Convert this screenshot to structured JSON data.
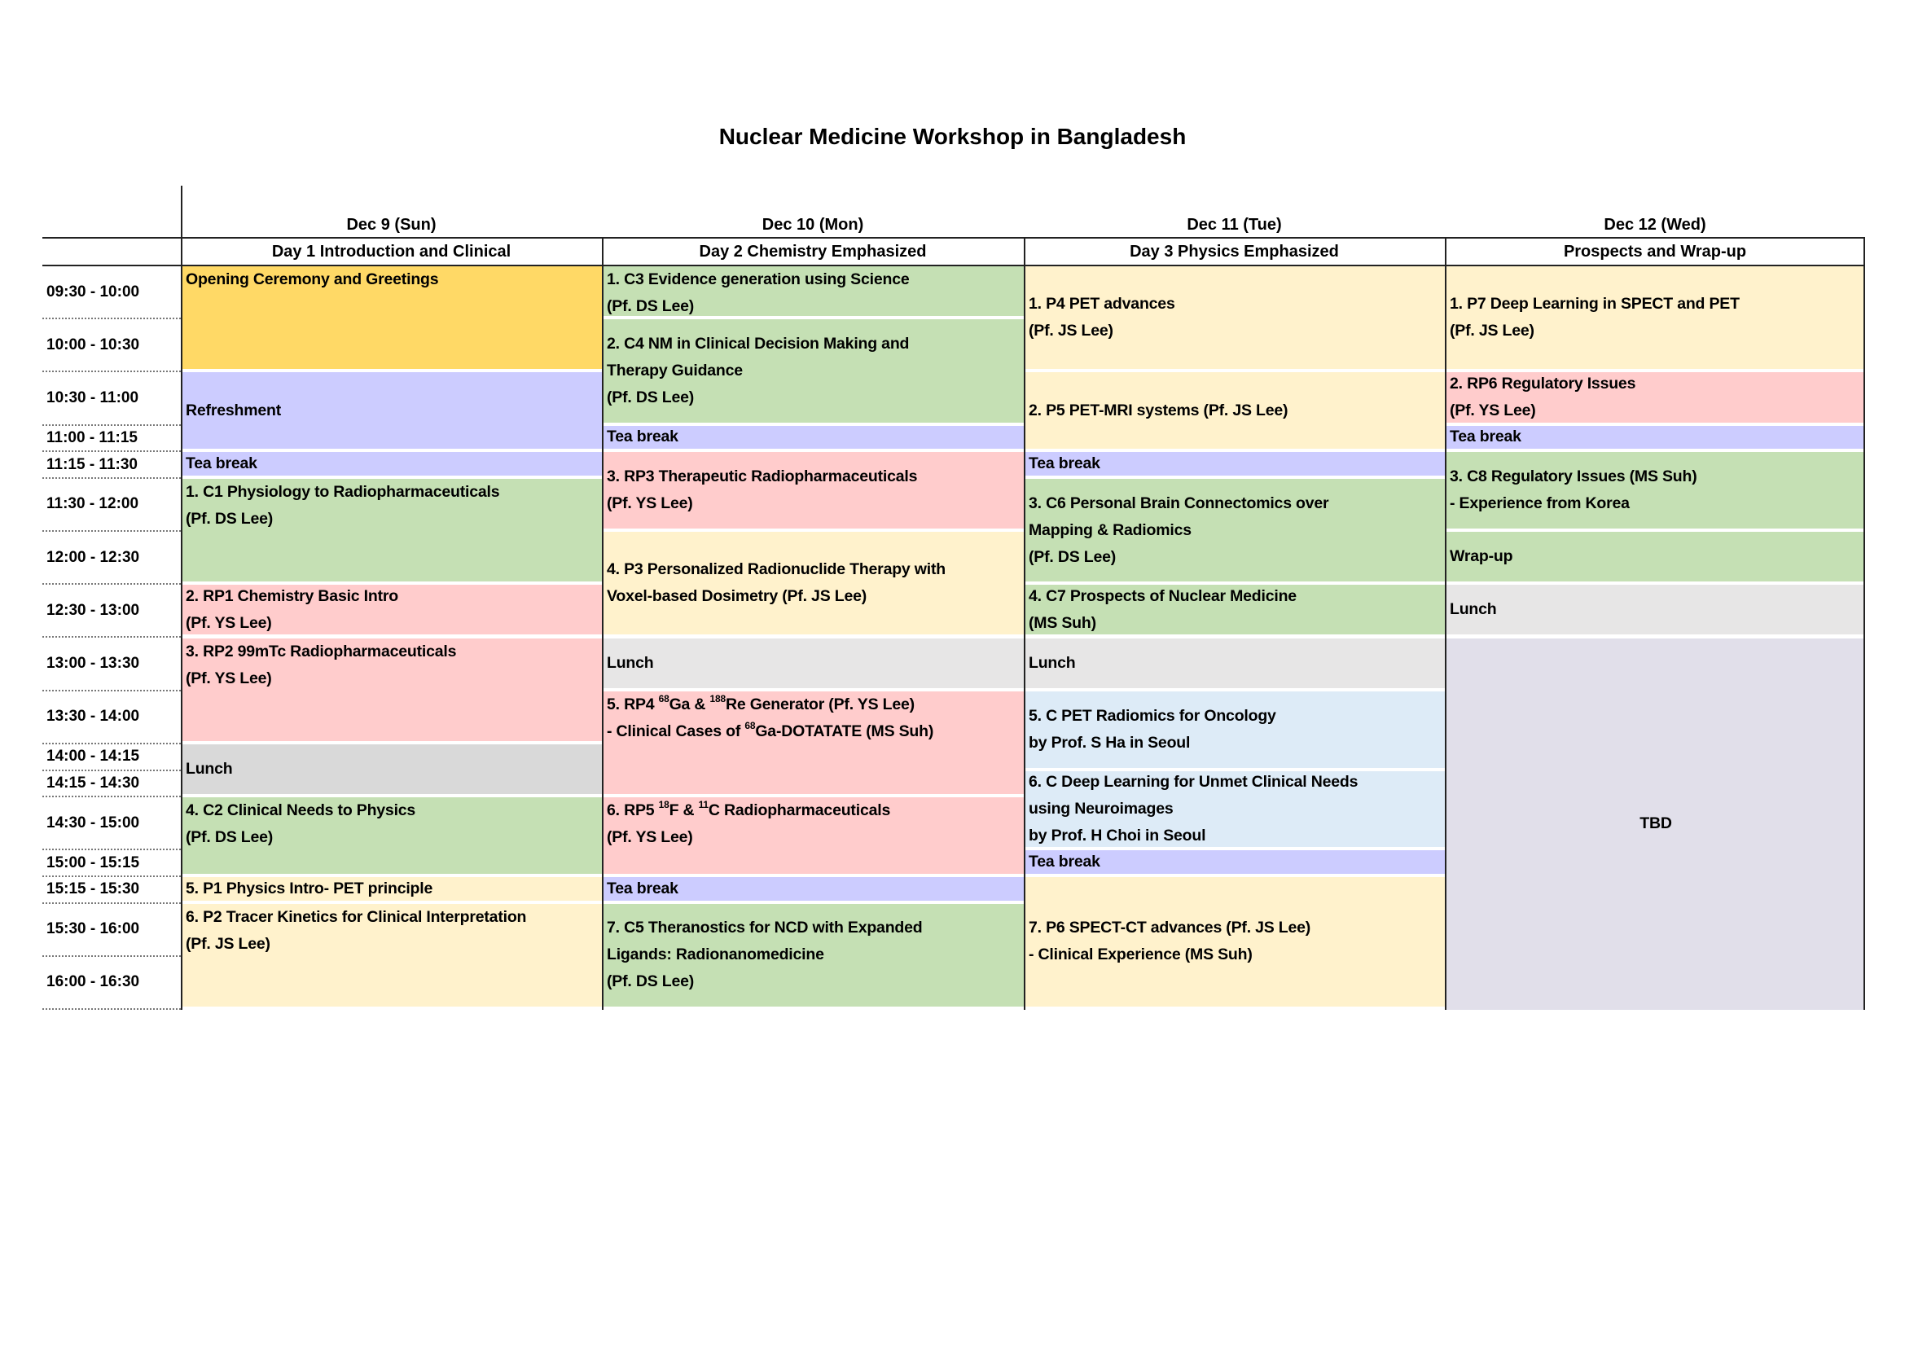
{
  "title": "Nuclear Medicine Workshop in Bangladesh",
  "colors": {
    "opening": "#FFD966",
    "break": "#CCCCFF",
    "clinical": "#C5E0B4",
    "radiopharm": "#FFCCCC",
    "physics": "#FFF2CC",
    "lunch_day1": "#D9D9D9",
    "lunch": "#E7E6E6",
    "invited": "#DDEBF7",
    "tbd": "#E1DFEA"
  },
  "days": [
    {
      "date": "Dec 9 (Sun)",
      "theme": "Day 1 Introduction and Clinical"
    },
    {
      "date": "Dec 10 (Mon)",
      "theme": "Day 2 Chemistry Emphasized"
    },
    {
      "date": "Dec 11 (Tue)",
      "theme": "Day 3 Physics Emphasized"
    },
    {
      "date": "Dec 12 (Wed)",
      "theme": "Prospects and Wrap-up"
    }
  ],
  "time_slots": [
    {
      "label": "09:30 - 10:00",
      "start": "09:30",
      "end": "10:00"
    },
    {
      "label": "10:00 - 10:30",
      "start": "10:00",
      "end": "10:30"
    },
    {
      "label": "10:30 - 11:00",
      "start": "10:30",
      "end": "11:00"
    },
    {
      "label": "11:00 - 11:15",
      "start": "11:00",
      "end": "11:15"
    },
    {
      "label": "11:15 - 11:30",
      "start": "11:15",
      "end": "11:30"
    },
    {
      "label": "11:30 - 12:00",
      "start": "11:30",
      "end": "12:00"
    },
    {
      "label": "12:00 - 12:30",
      "start": "12:00",
      "end": "12:30"
    },
    {
      "label": "12:30 - 13:00",
      "start": "12:30",
      "end": "13:00"
    },
    {
      "label": "13:00 - 13:30",
      "start": "13:00",
      "end": "13:30"
    },
    {
      "label": "13:30 - 14:00",
      "start": "13:30",
      "end": "14:00"
    },
    {
      "label": "14:00 - 14:15",
      "start": "14:00",
      "end": "14:15"
    },
    {
      "label": "14:15 - 14:30",
      "start": "14:15",
      "end": "14:30"
    },
    {
      "label": "14:30 - 15:00",
      "start": "14:30",
      "end": "15:00"
    },
    {
      "label": "15:00 - 15:15",
      "start": "15:00",
      "end": "15:15"
    },
    {
      "label": "15:15 - 15:30",
      "start": "15:15",
      "end": "15:30"
    },
    {
      "label": "15:30 - 16:00",
      "start": "15:30",
      "end": "16:00"
    },
    {
      "label": "16:00 - 16:30",
      "start": "16:00",
      "end": "16:30"
    }
  ],
  "events": [
    {
      "day": 0,
      "start": "09:30",
      "end": "10:30",
      "color": "opening",
      "lines": [
        [
          "Opening Ceremony and Greetings"
        ]
      ]
    },
    {
      "day": 0,
      "start": "10:30",
      "end": "11:15",
      "color": "break",
      "lines": [
        [
          "Refreshment"
        ]
      ]
    },
    {
      "day": 0,
      "start": "11:15",
      "end": "11:30",
      "color": "break",
      "lines": [
        [
          "Tea break"
        ]
      ]
    },
    {
      "day": 0,
      "start": "11:30",
      "end": "12:30",
      "color": "clinical",
      "lines": [
        [
          "1. C1 Physiology to Radiopharmaceuticals"
        ],
        [
          "(Pf. DS Lee)"
        ]
      ]
    },
    {
      "day": 0,
      "start": "12:30",
      "end": "13:00",
      "color": "radiopharm",
      "lines": [
        [
          "2. RP1 Chemistry Basic Intro"
        ],
        [
          "(Pf. YS Lee)"
        ]
      ]
    },
    {
      "day": 0,
      "start": "13:00",
      "end": "14:00",
      "color": "radiopharm",
      "lines": [
        [
          "3. RP2 99mTc Radiopharmaceuticals"
        ],
        [
          "(Pf. YS Lee)"
        ]
      ]
    },
    {
      "day": 0,
      "start": "14:00",
      "end": "14:30",
      "color": "lunch_day1",
      "lines": [
        [
          "Lunch"
        ]
      ]
    },
    {
      "day": 0,
      "start": "14:30",
      "end": "15:15",
      "color": "clinical",
      "lines": [
        [
          "4. C2 Clinical Needs to Physics"
        ],
        [
          "(Pf. DS Lee)"
        ]
      ]
    },
    {
      "day": 0,
      "start": "15:15",
      "end": "15:30",
      "color": "physics",
      "lines": [
        [
          "5. P1 Physics Intro- PET principle"
        ]
      ]
    },
    {
      "day": 0,
      "start": "15:30",
      "end": "16:30",
      "color": "physics",
      "lines": [
        [
          "6. P2 Tracer Kinetics for Clinical Interpretation"
        ],
        [
          "(Pf. JS Lee)"
        ]
      ]
    },
    {
      "day": 1,
      "start": "09:30",
      "end": "10:00",
      "color": "clinical",
      "lines": [
        [
          "1. C3 Evidence generation using Science"
        ],
        [
          "(Pf. DS Lee)"
        ]
      ]
    },
    {
      "day": 1,
      "start": "10:00",
      "end": "11:00",
      "color": "clinical",
      "lines": [
        [
          "2. C4 NM in Clinical Decision Making and"
        ],
        [
          "Therapy Guidance"
        ],
        [
          "(Pf. DS Lee)"
        ]
      ]
    },
    {
      "day": 1,
      "start": "11:00",
      "end": "11:15",
      "color": "break",
      "lines": [
        [
          "Tea break"
        ]
      ]
    },
    {
      "day": 1,
      "start": "11:15",
      "end": "12:00",
      "color": "radiopharm",
      "lines": [
        [
          "3. RP3 Therapeutic Radiopharmaceuticals"
        ],
        [
          "(Pf. YS Lee)"
        ]
      ]
    },
    {
      "day": 1,
      "start": "12:00",
      "end": "13:00",
      "color": "physics",
      "lines": [
        [
          "4. P3 Personalized Radionuclide Therapy with"
        ],
        [
          "Voxel-based Dosimetry (Pf. JS Lee)"
        ]
      ]
    },
    {
      "day": 1,
      "start": "13:00",
      "end": "13:30",
      "color": "lunch",
      "lines": [
        [
          "Lunch"
        ]
      ]
    },
    {
      "day": 1,
      "start": "13:30",
      "end": "14:30",
      "color": "radiopharm",
      "lines": [
        [
          "5. RP4 ",
          {
            "sup": "68"
          },
          "Ga & ",
          {
            "sup": "188"
          },
          "Re Generator (Pf. YS Lee)"
        ],
        [
          "- Clinical Cases of ",
          {
            "sup": "68"
          },
          "Ga-DOTATATE (MS Suh)"
        ]
      ]
    },
    {
      "day": 1,
      "start": "14:30",
      "end": "15:15",
      "color": "radiopharm",
      "lines": [
        [
          "6. RP5 ",
          {
            "sup": "18"
          },
          "F & ",
          {
            "sup": "11"
          },
          "C Radiopharmaceuticals"
        ],
        [
          "(Pf. YS Lee)"
        ]
      ]
    },
    {
      "day": 1,
      "start": "15:15",
      "end": "15:30",
      "color": "break",
      "lines": [
        [
          "Tea break"
        ]
      ]
    },
    {
      "day": 1,
      "start": "15:30",
      "end": "16:30",
      "color": "clinical",
      "lines": [
        [
          "7. C5 Theranostics for NCD with Expanded"
        ],
        [
          "Ligands: Radionanomedicine"
        ],
        [
          "(Pf. DS Lee)"
        ]
      ]
    },
    {
      "day": 2,
      "start": "09:30",
      "end": "10:30",
      "color": "physics",
      "lines": [
        [
          "1. P4 PET advances"
        ],
        [
          "(Pf. JS Lee)"
        ]
      ]
    },
    {
      "day": 2,
      "start": "10:30",
      "end": "11:15",
      "color": "physics",
      "lines": [
        [
          "2. P5 PET-MRI systems (Pf. JS Lee)"
        ]
      ]
    },
    {
      "day": 2,
      "start": "11:15",
      "end": "11:30",
      "color": "break",
      "lines": [
        [
          "Tea break"
        ]
      ]
    },
    {
      "day": 2,
      "start": "11:30",
      "end": "12:30",
      "color": "clinical",
      "lines": [
        [
          "3. C6 Personal Brain Connectomics over"
        ],
        [
          "Mapping & Radiomics"
        ],
        [
          "(Pf. DS Lee)"
        ]
      ]
    },
    {
      "day": 2,
      "start": "12:30",
      "end": "13:00",
      "color": "clinical",
      "lines": [
        [
          "4. C7 Prospects of Nuclear Medicine"
        ],
        [
          "(MS Suh)"
        ]
      ]
    },
    {
      "day": 2,
      "start": "13:00",
      "end": "13:30",
      "color": "lunch",
      "lines": [
        [
          "Lunch"
        ]
      ]
    },
    {
      "day": 2,
      "start": "13:30",
      "end": "14:15",
      "color": "invited",
      "lines": [
        [
          "5. C PET Radiomics for Oncology"
        ],
        [
          "by Prof. S Ha in Seoul"
        ]
      ]
    },
    {
      "day": 2,
      "start": "14:15",
      "end": "15:00",
      "color": "invited",
      "lines": [
        [
          "6. C Deep Learning for Unmet Clinical Needs"
        ],
        [
          "using Neuroimages"
        ],
        [
          "by Prof. H Choi in Seoul"
        ]
      ]
    },
    {
      "day": 2,
      "start": "15:00",
      "end": "15:15",
      "color": "break",
      "lines": [
        [
          "Tea break"
        ]
      ]
    },
    {
      "day": 2,
      "start": "15:15",
      "end": "16:30",
      "color": "physics",
      "lines": [
        [
          "7. P6 SPECT-CT advances (Pf. JS Lee)"
        ],
        [
          "- Clinical Experience (MS Suh)"
        ]
      ]
    },
    {
      "day": 3,
      "start": "09:30",
      "end": "10:30",
      "color": "physics",
      "lines": [
        [
          "1. P7 Deep Learning in SPECT and PET"
        ],
        [
          "(Pf. JS Lee)"
        ]
      ]
    },
    {
      "day": 3,
      "start": "10:30",
      "end": "11:00",
      "color": "radiopharm",
      "lines": [
        [
          "2. RP6 Regulatory Issues"
        ],
        [
          "(Pf. YS Lee)"
        ]
      ]
    },
    {
      "day": 3,
      "start": "11:00",
      "end": "11:15",
      "color": "break",
      "lines": [
        [
          "Tea break"
        ]
      ]
    },
    {
      "day": 3,
      "start": "11:15",
      "end": "12:00",
      "color": "clinical",
      "lines": [
        [
          "3. C8 Regulatory Issues (MS Suh)"
        ],
        [
          "- Experience from Korea"
        ]
      ]
    },
    {
      "day": 3,
      "start": "12:00",
      "end": "12:30",
      "color": "clinical",
      "lines": [
        [
          "Wrap-up"
        ]
      ]
    },
    {
      "day": 3,
      "start": "12:30",
      "end": "13:00",
      "color": "lunch",
      "lines": [
        [
          "Lunch"
        ]
      ]
    },
    {
      "day": 3,
      "start": "13:00",
      "end": "16:30",
      "color": "tbd",
      "lines": [
        [
          "TBD"
        ]
      ]
    }
  ]
}
